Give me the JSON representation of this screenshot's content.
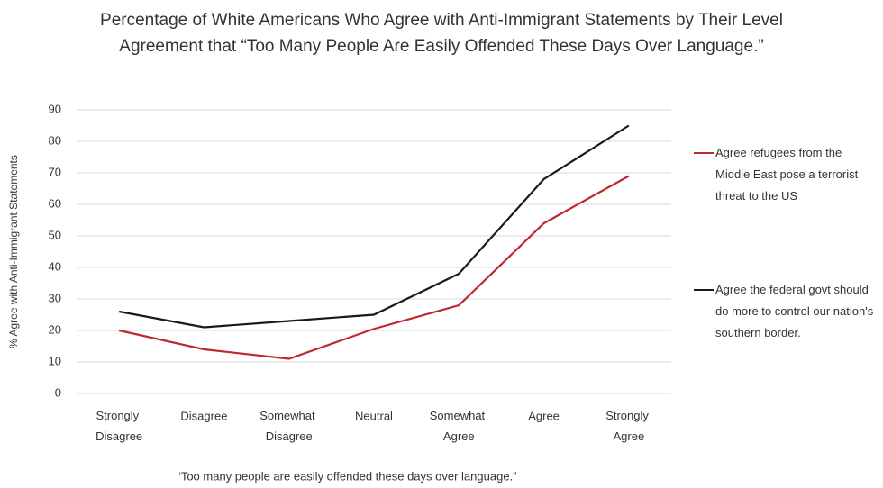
{
  "chart_data": {
    "type": "line",
    "title": "Percentage of White Americans Who Agree with Anti-Immigrant Statements by Their Level Agreement that “Too Many People Are Easily Offended These Days Over Language.”",
    "y_label": "% Agree with Anti-Immigrant Statements",
    "x_label": "“Too many people are easily offended these days over language.”",
    "categories": [
      "Strongly Disagree",
      "Disagree",
      "Somewhat Disagree",
      "Neutral",
      "Somewhat Agree",
      "Agree",
      "Strongly Agree"
    ],
    "series": [
      {
        "name": "Agree refugees from the Middle East pose a terrorist threat to the US",
        "color": "#c0282d",
        "values": [
          20,
          14,
          11,
          20.5,
          28,
          54,
          69
        ]
      },
      {
        "name": "Agree the federal govt should do more to control our nation's southern border.",
        "color": "#1a1a1a",
        "values": [
          26,
          21,
          23,
          25,
          38,
          68,
          85
        ]
      }
    ],
    "ylim": [
      0,
      90
    ],
    "yticks": [
      0,
      10,
      20,
      30,
      40,
      50,
      60,
      70,
      80,
      90
    ],
    "grid": true,
    "legend": "right"
  }
}
